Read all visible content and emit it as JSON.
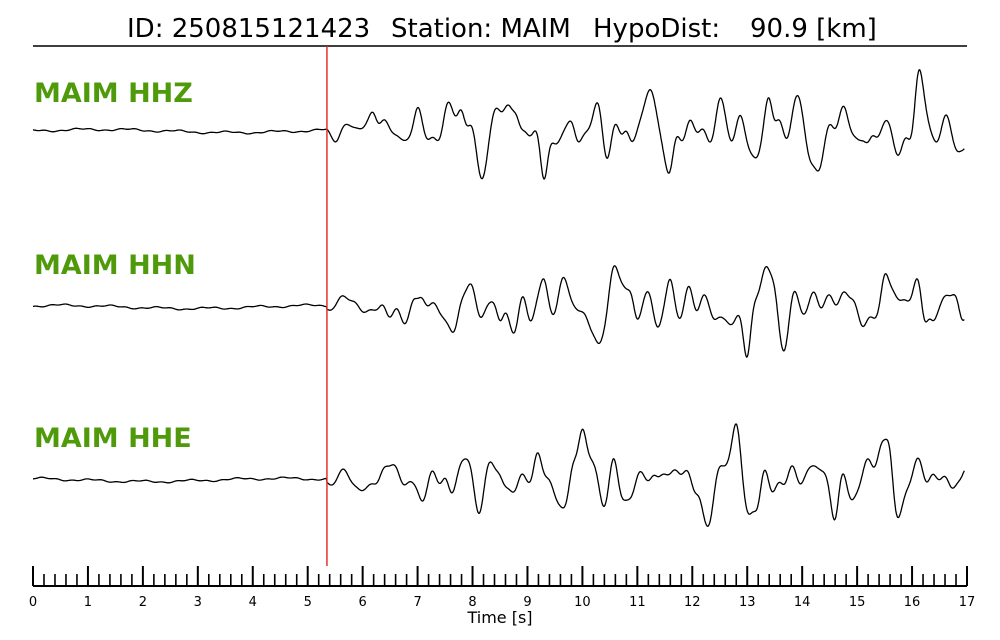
{
  "header": {
    "id_text": "ID: 250815121423",
    "station_text": "Station: MAIM",
    "dist_text": "HypoDist:",
    "dist_value": "90.9 [km]"
  },
  "chart_data": {
    "type": "line",
    "title": "ID: 250815121423   Station: MAIM   HypoDist:    90.9 [km]",
    "xlabel": "Time [s]",
    "ylabel": "",
    "xlim": [
      0,
      17
    ],
    "x_ticks": [
      "0",
      "1",
      "2",
      "3",
      "4",
      "5",
      "6",
      "7",
      "8",
      "9",
      "10",
      "11",
      "12",
      "13",
      "14",
      "15",
      "16",
      "17"
    ],
    "minor_tick_step": 0.2,
    "pick_time": 5.35,
    "pick_color": "#e8302a",
    "label_color": "#4f9a0a",
    "trace_color": "#000000",
    "grid": false,
    "series": [
      {
        "name": "MAIM HHZ",
        "peaks": [
          [
            5.6,
            0.15
          ],
          [
            6.2,
            0.5
          ],
          [
            7.0,
            0.45
          ],
          [
            7.8,
            0.8
          ],
          [
            8.8,
            1.0
          ],
          [
            9.3,
            -1.3
          ],
          [
            9.9,
            -0.5
          ],
          [
            10.8,
            0.6
          ],
          [
            11.6,
            -0.5
          ],
          [
            12.5,
            0.4
          ],
          [
            13.4,
            1.0
          ],
          [
            14.3,
            -0.4
          ],
          [
            15.2,
            -0.8
          ],
          [
            16.1,
            0.9
          ],
          [
            16.9,
            0.3
          ]
        ]
      },
      {
        "name": "MAIM HHN",
        "peaks": [
          [
            5.6,
            0.1
          ],
          [
            6.3,
            -0.2
          ],
          [
            7.0,
            -0.6
          ],
          [
            7.6,
            0.4
          ],
          [
            8.5,
            -0.8
          ],
          [
            9.3,
            0.7
          ],
          [
            10.3,
            -0.6
          ],
          [
            10.9,
            0.95
          ],
          [
            11.6,
            0.8
          ],
          [
            12.4,
            -0.3
          ],
          [
            13.0,
            -1.3
          ],
          [
            13.5,
            0.7
          ],
          [
            14.4,
            0.3
          ],
          [
            15.5,
            0.8
          ],
          [
            16.3,
            1.2
          ],
          [
            16.9,
            -0.6
          ]
        ]
      },
      {
        "name": "MAIM HHE",
        "peaks": [
          [
            5.6,
            0.0
          ],
          [
            6.2,
            0.2
          ],
          [
            7.0,
            0.25
          ],
          [
            7.6,
            -0.3
          ],
          [
            8.5,
            0.4
          ],
          [
            9.1,
            -0.6
          ],
          [
            9.8,
            0.55
          ],
          [
            10.0,
            1.0
          ],
          [
            10.5,
            -0.4
          ],
          [
            11.3,
            0.4
          ],
          [
            12.2,
            -0.5
          ],
          [
            12.8,
            0.6
          ],
          [
            13.2,
            -0.7
          ],
          [
            14.6,
            -0.6
          ],
          [
            15.6,
            1.3
          ],
          [
            16.2,
            0.2
          ],
          [
            16.9,
            -0.2
          ]
        ]
      }
    ]
  }
}
